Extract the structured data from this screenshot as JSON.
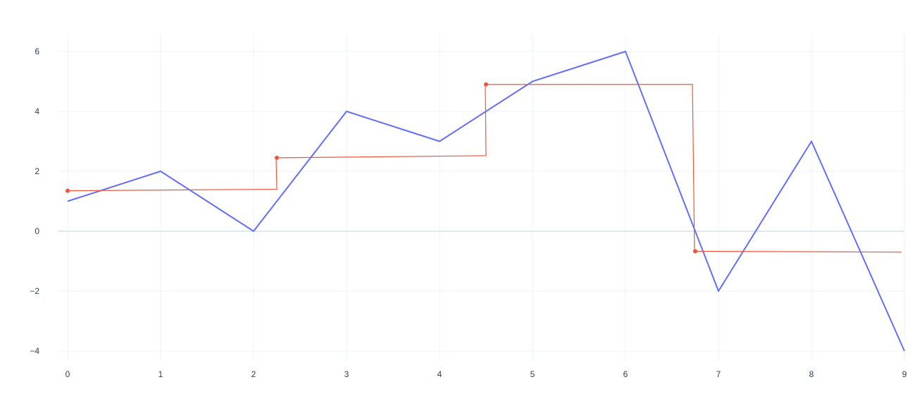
{
  "chart_data": {
    "type": "line",
    "title": "",
    "xlabel": "",
    "ylabel": "",
    "xlim": [
      0,
      9
    ],
    "ylim": [
      -4,
      6
    ],
    "grid": true,
    "legend": "none",
    "x_ticks": [
      0,
      1,
      2,
      3,
      4,
      5,
      6,
      7,
      8,
      9
    ],
    "y_ticks": [
      -4,
      -2,
      0,
      2,
      4,
      6
    ],
    "x_tick_labels": [
      "0",
      "1",
      "2",
      "3",
      "4",
      "5",
      "6",
      "7",
      "8",
      "9"
    ],
    "y_tick_labels": [
      "−4",
      "−2",
      "0",
      "2",
      "4",
      "6"
    ],
    "series": [
      {
        "color": "#636efa",
        "mode": "lines",
        "x": [
          0,
          1,
          2,
          3,
          4,
          5,
          6,
          7,
          8,
          9
        ],
        "y": [
          1,
          2,
          0,
          4,
          3,
          5,
          6,
          -2,
          3,
          -4
        ]
      },
      {
        "color": "#ef553b",
        "mode": "steps+markers",
        "segments": [
          {
            "x": [
              0,
              2.25
            ],
            "y": [
              1.35,
              1.4
            ]
          },
          {
            "x": [
              2.25,
              4.5
            ],
            "y": [
              2.45,
              2.52
            ]
          },
          {
            "x": [
              4.5,
              6.72
            ],
            "y": [
              4.9,
              4.9
            ]
          },
          {
            "x": [
              6.75,
              8.97
            ],
            "y": [
              -0.67,
              -0.7
            ]
          }
        ],
        "markers": {
          "x": [
            0,
            2.25,
            4.5,
            6.75
          ],
          "y": [
            1.35,
            2.45,
            4.9,
            -0.67
          ]
        }
      }
    ]
  }
}
